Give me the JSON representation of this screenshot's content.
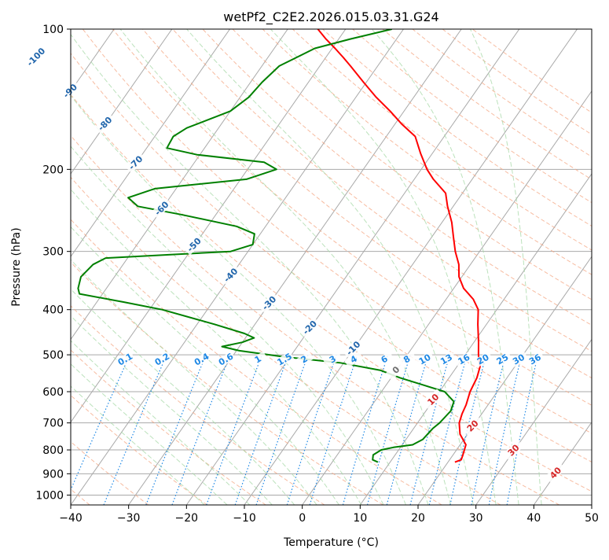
{
  "chart_data": {
    "type": "line",
    "title": "wetPf2_C2E2.2026.015.03.31.G24",
    "xlabel": "Temperature (°C)",
    "ylabel": "Pressure (hPa)",
    "xlim": [
      -40,
      50
    ],
    "ylim": [
      1050,
      100
    ],
    "y_scale": "log",
    "skew": true,
    "grid": true,
    "x_ticks": [
      "−40",
      "−30",
      "−20",
      "−10",
      "0",
      "10",
      "20",
      "30",
      "40",
      "50"
    ],
    "y_ticks": [
      {
        "value": 100,
        "label": "100"
      },
      {
        "value": 200,
        "label": "200"
      },
      {
        "value": 300,
        "label": "300"
      },
      {
        "value": 400,
        "label": "400"
      },
      {
        "value": 500,
        "label": "500"
      },
      {
        "value": 600,
        "label": "600"
      },
      {
        "value": 700,
        "label": "700"
      },
      {
        "value": 800,
        "label": "800"
      },
      {
        "value": 900,
        "label": "900"
      },
      {
        "value": 1000,
        "label": "1000"
      }
    ],
    "colors": {
      "temperature": "#ff0000",
      "dewpoint": "#008000",
      "isotherm": "#a9a9a9",
      "dry_adiabat": "#f4a582",
      "moist_adiabat": "#a6d8a6",
      "mixing_ratio": "#1e88e5",
      "isotherm_label": "#2166ac",
      "adiabat_label": "#d62728"
    },
    "series": [
      {
        "key": "temperature",
        "points": [
          {
            "p": 850,
            "t": 21.2
          },
          {
            "p": 840,
            "t": 22.0
          },
          {
            "p": 820,
            "t": 21.7
          },
          {
            "p": 780,
            "t": 21.0
          },
          {
            "p": 740,
            "t": 18.7
          },
          {
            "p": 700,
            "t": 17.2
          },
          {
            "p": 670,
            "t": 16.6
          },
          {
            "p": 640,
            "t": 16.2
          },
          {
            "p": 600,
            "t": 15.3
          },
          {
            "p": 560,
            "t": 14.8
          },
          {
            "p": 530,
            "t": 14.0
          },
          {
            "p": 500,
            "t": 12.3
          },
          {
            "p": 470,
            "t": 10.8
          },
          {
            "p": 430,
            "t": 8.5
          },
          {
            "p": 400,
            "t": 6.8
          },
          {
            "p": 380,
            "t": 4.7
          },
          {
            "p": 360,
            "t": 1.7
          },
          {
            "p": 340,
            "t": -0.5
          },
          {
            "p": 320,
            "t": -2.0
          },
          {
            "p": 300,
            "t": -4.2
          },
          {
            "p": 280,
            "t": -6.2
          },
          {
            "p": 260,
            "t": -8.3
          },
          {
            "p": 240,
            "t": -11.0
          },
          {
            "p": 225,
            "t": -12.9
          },
          {
            "p": 210,
            "t": -16.7
          },
          {
            "p": 200,
            "t": -19.0
          },
          {
            "p": 185,
            "t": -22.0
          },
          {
            "p": 170,
            "t": -25.0
          },
          {
            "p": 160,
            "t": -28.8
          },
          {
            "p": 150,
            "t": -32.4
          },
          {
            "p": 140,
            "t": -36.5
          },
          {
            "p": 130,
            "t": -40.5
          },
          {
            "p": 120,
            "t": -44.7
          },
          {
            "p": 115,
            "t": -47.0
          },
          {
            "p": 110,
            "t": -49.5
          },
          {
            "p": 105,
            "t": -52.2
          },
          {
            "p": 100,
            "t": -54.8
          }
        ]
      },
      {
        "key": "dewpoint",
        "points": [
          {
            "p": 850,
            "t": 7.9
          },
          {
            "p": 840,
            "t": 6.7
          },
          {
            "p": 820,
            "t": 6.2
          },
          {
            "p": 800,
            "t": 7.0
          },
          {
            "p": 790,
            "t": 8.8
          },
          {
            "p": 780,
            "t": 11.8
          },
          {
            "p": 760,
            "t": 12.9
          },
          {
            "p": 720,
            "t": 13.3
          },
          {
            "p": 700,
            "t": 13.8
          },
          {
            "p": 660,
            "t": 14.3
          },
          {
            "p": 630,
            "t": 13.7
          },
          {
            "p": 600,
            "t": 10.9
          },
          {
            "p": 580,
            "t": 6.3
          },
          {
            "p": 560,
            "t": 1.5
          },
          {
            "p": 540,
            "t": -2.7
          },
          {
            "p": 520,
            "t": -10.7
          },
          {
            "p": 505,
            "t": -21.0
          },
          {
            "p": 490,
            "t": -29.5
          },
          {
            "p": 480,
            "t": -33.0
          },
          {
            "p": 470,
            "t": -30.0
          },
          {
            "p": 460,
            "t": -28.5
          },
          {
            "p": 450,
            "t": -30.7
          },
          {
            "p": 430,
            "t": -37.0
          },
          {
            "p": 400,
            "t": -47.8
          },
          {
            "p": 385,
            "t": -55.5
          },
          {
            "p": 370,
            "t": -64.0
          },
          {
            "p": 360,
            "t": -64.9
          },
          {
            "p": 340,
            "t": -65.8
          },
          {
            "p": 320,
            "t": -65.2
          },
          {
            "p": 310,
            "t": -63.8
          },
          {
            "p": 300,
            "t": -43.0
          },
          {
            "p": 290,
            "t": -40.0
          },
          {
            "p": 275,
            "t": -41.0
          },
          {
            "p": 265,
            "t": -45.0
          },
          {
            "p": 250,
            "t": -56.0
          },
          {
            "p": 240,
            "t": -64.5
          },
          {
            "p": 230,
            "t": -67.2
          },
          {
            "p": 220,
            "t": -63.7
          },
          {
            "p": 210,
            "t": -49.0
          },
          {
            "p": 200,
            "t": -45.0
          },
          {
            "p": 193,
            "t": -48.0
          },
          {
            "p": 186,
            "t": -60.5
          },
          {
            "p": 180,
            "t": -66.5
          },
          {
            "p": 170,
            "t": -66.8
          },
          {
            "p": 163,
            "t": -65.5
          },
          {
            "p": 150,
            "t": -60.0
          },
          {
            "p": 140,
            "t": -58.5
          },
          {
            "p": 130,
            "t": -58.0
          },
          {
            "p": 120,
            "t": -57.0
          },
          {
            "p": 110,
            "t": -53.0
          },
          {
            "p": 105,
            "t": -48.0
          },
          {
            "p": 100,
            "t": -42.0
          }
        ]
      }
    ],
    "isotherm_labels": [
      {
        "t": -100,
        "label": "-100"
      },
      {
        "t": -90,
        "label": "-90"
      },
      {
        "t": -80,
        "label": "-80"
      },
      {
        "t": -70,
        "label": "-70"
      },
      {
        "t": -60,
        "label": "-60"
      },
      {
        "t": -50,
        "label": "-50"
      },
      {
        "t": -40,
        "label": "-40"
      },
      {
        "t": -30,
        "label": "-30"
      },
      {
        "t": -20,
        "label": "-20"
      },
      {
        "t": -10,
        "label": "-10"
      },
      {
        "t": 0,
        "label": "0"
      },
      {
        "t": 10,
        "label": "10"
      },
      {
        "t": 20,
        "label": "20"
      },
      {
        "t": 30,
        "label": "30"
      },
      {
        "t": 40,
        "label": "40"
      }
    ],
    "mixing_ratio_labels": [
      "0.1",
      "0.2",
      "0.4",
      "0.6",
      "1",
      "1.5",
      "2",
      "3",
      "4",
      "6",
      "8",
      "10",
      "13",
      "16",
      "20",
      "25",
      "30",
      "36"
    ],
    "mixing_ratio_values": [
      0.1,
      0.2,
      0.4,
      0.6,
      1,
      1.5,
      2,
      3,
      4,
      6,
      8,
      10,
      13,
      16,
      20,
      25,
      30,
      36
    ]
  }
}
